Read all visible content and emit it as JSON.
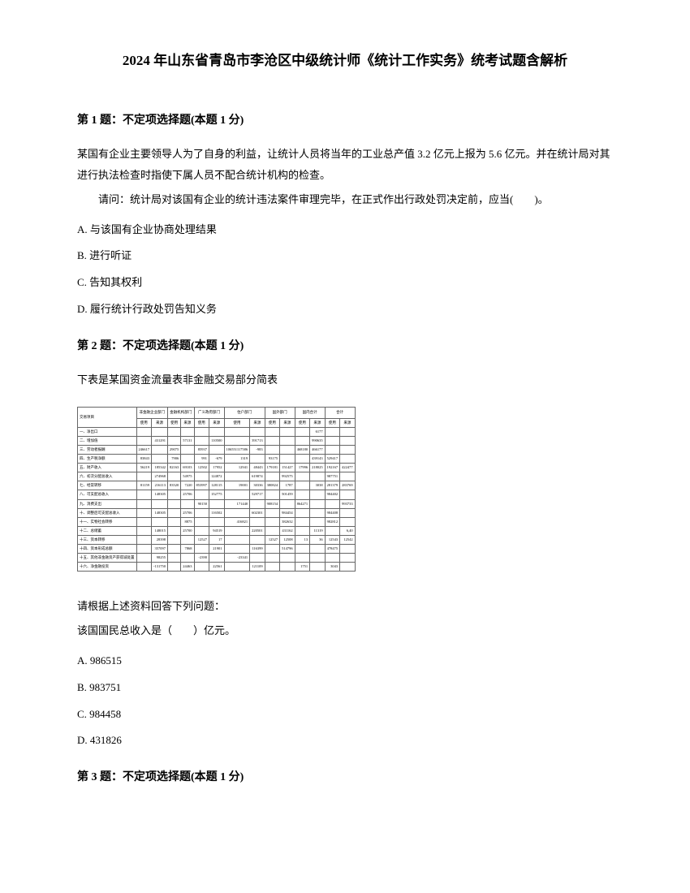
{
  "document": {
    "title": "2024 年山东省青岛市李沧区中级统计师《统计工作实务》统考试题含解析",
    "text_color": "#000000",
    "background_color": "#ffffff"
  },
  "q1": {
    "header": "第 1 题：不定项选择题(本题 1 分)",
    "para1": "某国有企业主要领导人为了自身的利益，让统计人员将当年的工业总产值 3.2 亿元上报为 5.6 亿元。并在统计局对其进行执法检查时指使下属人员不配合统计机构的检查。",
    "para2": "请问：统计局对该国有企业的统计违法案件审理完毕，在正式作出行政处罚决定前，应当(　　)。",
    "options": {
      "a": "A. 与该国有企业协商处理结果",
      "b": "B. 进行听证",
      "c": "C. 告知其权利",
      "d": "D. 履行统计行政处罚告知义务"
    }
  },
  "q2": {
    "header": "第 2 题：不定项选择题(本题 1 分)",
    "intro": "下表是某国资金流量表非金融交易部分简表",
    "table": {
      "col_headers_top": [
        "交易项目",
        "非金融企业部门",
        "金融机构部门",
        "广义政府部门",
        "住户部门",
        "国外部门",
        "国内合计",
        "合计"
      ],
      "sub_headers": [
        "",
        "使用",
        "来源",
        "使用",
        "来源",
        "使用",
        "来源",
        "使用",
        "来源",
        "使用",
        "来源",
        "使用",
        "来源"
      ],
      "rows": [
        [
          "一、净出口",
          "",
          "",
          "",
          "",
          "",
          "",
          "",
          "",
          "",
          "",
          "",
          "6177"
        ],
        [
          "二、增加值",
          "",
          "431291",
          "",
          "57131",
          "",
          "110500",
          "",
          "391713",
          "",
          "",
          "",
          "990635"
        ],
        [
          "三、劳动者报酬",
          "246617",
          "",
          "29075",
          "",
          "85937",
          "",
          "106551117586",
          "-983",
          "",
          "",
          "468180",
          "466177"
        ],
        [
          "四、生产税净额",
          "83843",
          "",
          "7906",
          "",
          "991",
          "-679",
          "1319",
          "",
          "93175",
          "",
          "",
          "439143",
          "529417"
        ],
        [
          "五、财产收入",
          "56219",
          "185342",
          "82163",
          "69103",
          "12502",
          "17952",
          "12941",
          "48443",
          "179181",
          "151427",
          "17996",
          "218025",
          "192167",
          "422477"
        ],
        [
          "六、初次分配总收入",
          "",
          "274968",
          "",
          "54975",
          "",
          "124872",
          "",
          "619874",
          "",
          "992575",
          "",
          "",
          "987751"
        ],
        [
          "七、经常转移",
          "81159",
          "216113",
          "83520",
          "7220",
          "853997",
          "128115",
          "19001",
          "30336",
          "380824",
          "1787",
          "",
          "3038",
          "281379",
          "283769"
        ],
        [
          "八、可支配总收入",
          "",
          "148305",
          "",
          "25706",
          "",
          "152775",
          "",
          "529717",
          "",
          "501459",
          "",
          "",
          "984402"
        ],
        [
          "九、消费支出",
          "",
          "",
          "",
          "",
          "90150",
          "",
          "171440",
          "",
          "908154",
          "",
          "864271",
          "",
          "",
          "993733",
          "99149"
        ],
        [
          "十、调整后可支配总收入",
          "",
          "148305",
          "",
          "25706",
          "",
          "116502",
          "",
          "602301",
          "",
          "984454",
          "",
          "",
          "984408"
        ],
        [
          "十一、实物社会转移",
          "",
          "",
          "",
          "8875",
          "",
          "",
          "416821",
          "",
          "",
          "382632",
          "",
          "",
          "982812"
        ],
        [
          "十二、总储蓄",
          "",
          "148015",
          "",
          "25700",
          "",
          "94519",
          "",
          "220501",
          "",
          "431162",
          "",
          "11319",
          "",
          "6,40",
          "3"
        ],
        [
          "十三、资本转移",
          "",
          "28398",
          "",
          "",
          "12527",
          "17",
          "",
          "",
          "12527",
          "12508",
          "13",
          "36",
          "12543",
          "12542"
        ],
        [
          "十四、资本形成总额",
          "",
          "357097",
          "",
          "7868",
          "",
          "21901",
          "",
          "116399",
          "",
          "514796",
          "",
          "",
          "478475"
        ],
        [
          "十五、其他非金融资产获得减处置",
          "",
          "98255",
          "",
          "",
          "-2390",
          "",
          "-23341",
          "",
          "",
          "",
          "",
          ""
        ],
        [
          "十六、净金融投资",
          "",
          "-131750",
          "",
          "24463",
          "",
          "22561",
          "",
          "121109",
          "",
          "",
          "1751",
          "",
          "3043",
          "",
          "",
          "1940"
        ]
      ]
    },
    "prompt": "请根据上述资料回答下列问题：",
    "question": "该国国民总收入是（　　）亿元。",
    "options": {
      "a": "A. 986515",
      "b": "B. 983751",
      "c": "C. 984458",
      "d": "D. 431826"
    }
  },
  "q3": {
    "header": "第 3 题：不定项选择题(本题 1 分)"
  }
}
